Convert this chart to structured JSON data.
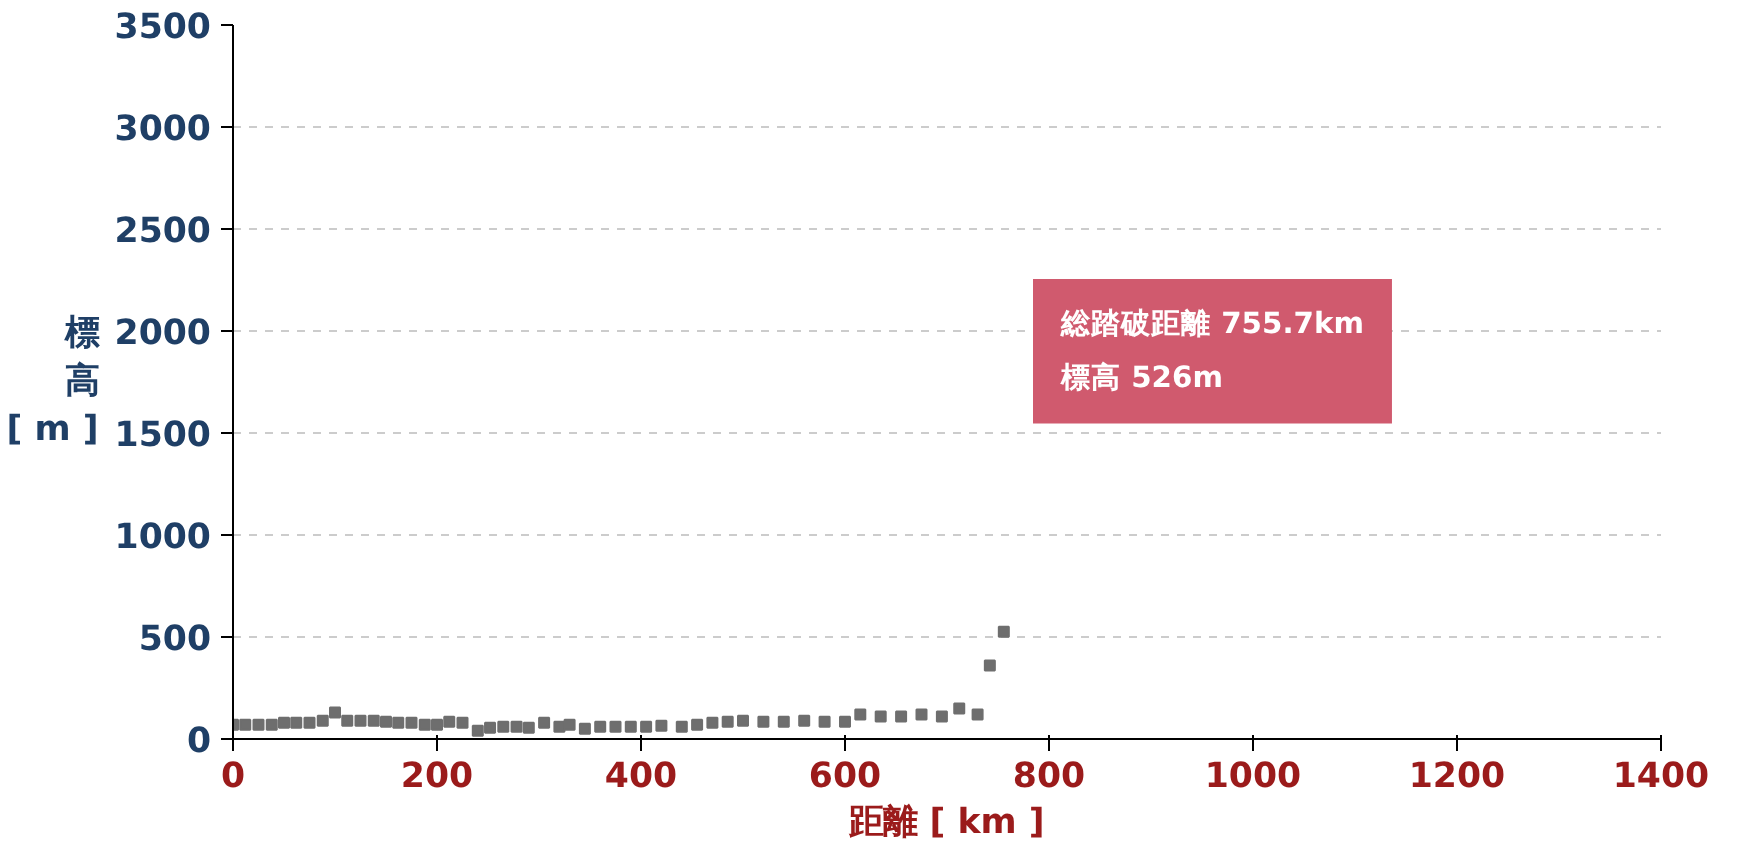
{
  "chart_data": {
    "type": "scatter",
    "xlabel": "距離 [ km ]",
    "ylabel": "標高 [ m ]",
    "x": [
      0,
      12,
      25,
      38,
      50,
      62,
      75,
      88,
      100,
      112,
      125,
      138,
      150,
      162,
      175,
      188,
      200,
      212,
      225,
      240,
      252,
      265,
      278,
      290,
      305,
      320,
      330,
      345,
      360,
      375,
      390,
      405,
      420,
      440,
      455,
      470,
      485,
      500,
      520,
      540,
      560,
      580,
      600,
      615,
      635,
      655,
      675,
      695,
      712,
      730,
      742,
      755.7
    ],
    "values": [
      70,
      70,
      70,
      70,
      80,
      80,
      80,
      90,
      130,
      90,
      90,
      90,
      85,
      80,
      80,
      70,
      70,
      85,
      80,
      40,
      55,
      60,
      60,
      55,
      80,
      60,
      70,
      50,
      60,
      60,
      60,
      60,
      65,
      60,
      70,
      80,
      85,
      90,
      85,
      85,
      90,
      85,
      85,
      120,
      110,
      110,
      120,
      110,
      150,
      120,
      360,
      526
    ],
    "color": "#6e6e6e",
    "marker": "square",
    "xlim": [
      0,
      1400
    ],
    "xticks": [
      0,
      200,
      400,
      600,
      800,
      1000,
      1200,
      1400
    ],
    "ylim": [
      0,
      3500
    ],
    "yticks": [
      0,
      500,
      1000,
      1500,
      2000,
      2500,
      3000,
      3500
    ],
    "grid": "y",
    "annotations": [
      "総踏破距離 755.7km\n標高 526m"
    ]
  }
}
